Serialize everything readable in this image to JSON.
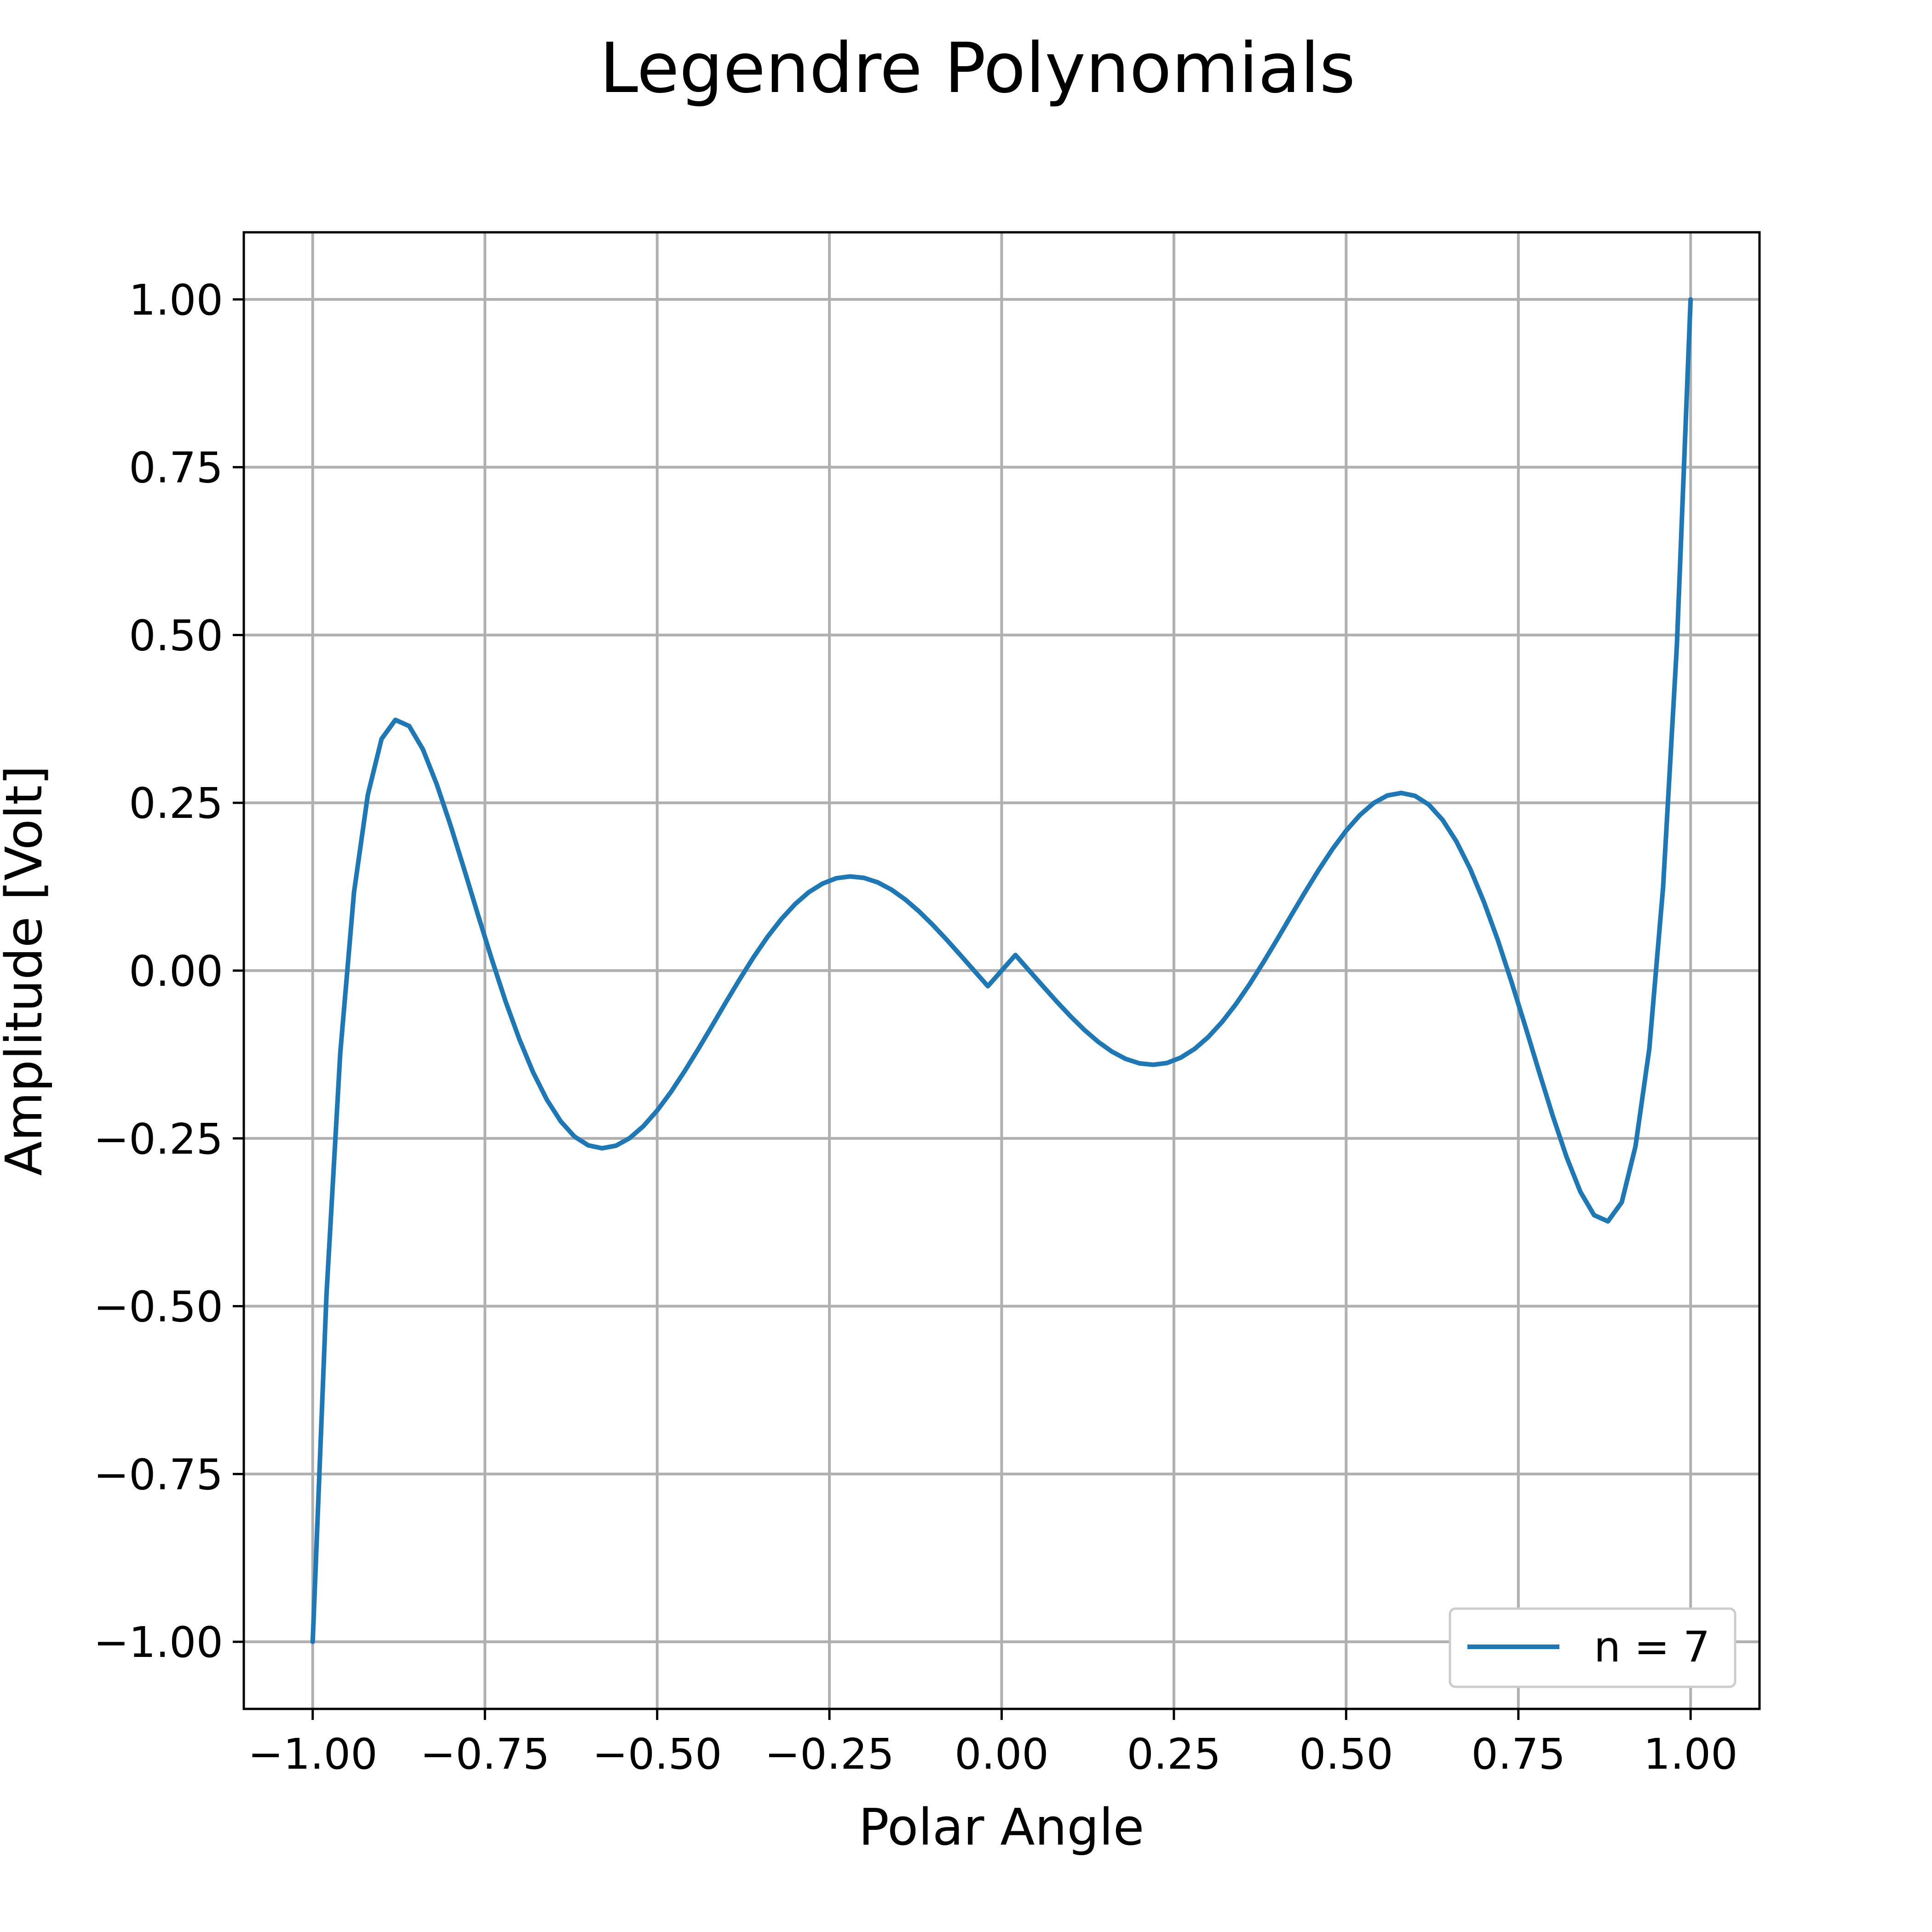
{
  "chart_data": {
    "type": "line",
    "title": "Legendre Polynomials",
    "xlabel": "Polar Angle",
    "ylabel": "Amplitude [Volt]",
    "xlim": [
      -1.1,
      1.1
    ],
    "ylim": [
      -1.1,
      1.1
    ],
    "xticks": [
      -1.0,
      -0.75,
      -0.5,
      -0.25,
      0.0,
      0.25,
      0.5,
      0.75,
      1.0
    ],
    "xtick_labels": [
      "−1.00",
      "−0.75",
      "−0.50",
      "−0.25",
      "0.00",
      "0.25",
      "0.50",
      "0.75",
      "1.00"
    ],
    "yticks": [
      1.0,
      0.75,
      0.5,
      0.25,
      0.0,
      -0.25,
      -0.5,
      -0.75,
      -1.0
    ],
    "ytick_labels": [
      "1.00",
      "0.75",
      "0.50",
      "0.25",
      "0.00",
      "−0.25",
      "−0.50",
      "−0.75",
      "−1.00"
    ],
    "grid": true,
    "legend_position": "lower-right",
    "series": [
      {
        "name": "n = 7",
        "color": "#1f77b4",
        "x": [
          -1.0,
          -0.98,
          -0.96,
          -0.94,
          -0.92,
          -0.9,
          -0.88,
          -0.86,
          -0.84,
          -0.82,
          -0.8,
          -0.78,
          -0.76,
          -0.74,
          -0.72,
          -0.7,
          -0.68,
          -0.66,
          -0.64,
          -0.62,
          -0.6,
          -0.58,
          -0.56,
          -0.54,
          -0.52,
          -0.5,
          -0.48,
          -0.46,
          -0.44,
          -0.42,
          -0.4,
          -0.38,
          -0.36,
          -0.34,
          -0.32,
          -0.3,
          -0.28,
          -0.26,
          -0.24,
          -0.22,
          -0.2,
          -0.18,
          -0.16,
          -0.14,
          -0.12,
          -0.1,
          -0.08,
          -0.06,
          -0.04,
          -0.02,
          0.0,
          0.02,
          0.04,
          0.06,
          0.08,
          0.1,
          0.12,
          0.14,
          0.16,
          0.18,
          0.2,
          0.22,
          0.24,
          0.26,
          0.28,
          0.3,
          0.32,
          0.34,
          0.36,
          0.38,
          0.4,
          0.42,
          0.44,
          0.46,
          0.48,
          0.5,
          0.52,
          0.54,
          0.56,
          0.58,
          0.6,
          0.62,
          0.64,
          0.66,
          0.68,
          0.7,
          0.72,
          0.74,
          0.76,
          0.78,
          0.8,
          0.82,
          0.84,
          0.86,
          0.88,
          0.9,
          0.92,
          0.94,
          0.96,
          0.98,
          1.0
        ],
        "y": [
          -1.0,
          -0.4834,
          -0.1229,
          0.1168,
          0.2619,
          0.3452,
          0.3735,
          0.3644,
          0.3296,
          0.2777,
          0.2167,
          0.1505,
          0.0828,
          0.0167,
          -0.0459,
          -0.1023,
          -0.1517,
          -0.1925,
          -0.2246,
          -0.2473,
          -0.2604,
          -0.2647,
          -0.2609,
          -0.2496,
          -0.2317,
          -0.2085,
          -0.1808,
          -0.1497,
          -0.1163,
          -0.0817,
          -0.0467,
          -0.0125,
          0.0201,
          0.05,
          0.0764,
          0.0989,
          0.1167,
          0.1296,
          0.1376,
          0.1403,
          0.1382,
          0.1315,
          0.1206,
          0.106,
          0.0883,
          0.0681,
          0.0462,
          0.0233,
          0.0001,
          -0.0232,
          0.0,
          0.0232,
          -0.0001,
          -0.0233,
          -0.0462,
          -0.0681,
          -0.0883,
          -0.106,
          -0.1206,
          -0.1315,
          -0.1382,
          -0.1403,
          -0.1376,
          -0.1296,
          -0.1167,
          -0.0989,
          -0.0764,
          -0.05,
          -0.0201,
          0.0125,
          0.0467,
          0.0817,
          0.1163,
          0.1497,
          0.1808,
          0.2085,
          0.2317,
          0.2496,
          0.2609,
          0.2647,
          0.2604,
          0.2473,
          0.2246,
          0.1925,
          0.1517,
          0.1023,
          0.0459,
          -0.0167,
          -0.0828,
          -0.1505,
          -0.2167,
          -0.2777,
          -0.3296,
          -0.3644,
          -0.3735,
          -0.3452,
          -0.2619,
          -0.1168,
          0.1229,
          0.4834,
          1.0
        ]
      }
    ]
  }
}
